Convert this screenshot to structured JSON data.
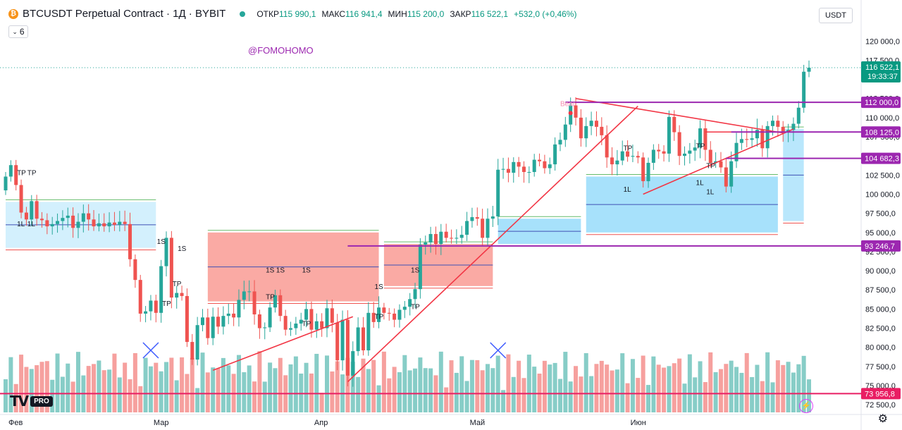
{
  "header": {
    "symbol": "BTCUSDT Perpetual Contract · 1Д · BYBIT",
    "coin_icon": "bitcoin-icon",
    "ohlc": [
      {
        "label": "ОТКР",
        "value": "115 990,1"
      },
      {
        "label": "МАКС",
        "value": "116 941,4"
      },
      {
        "label": "МИН",
        "value": "115 200,0"
      },
      {
        "label": "ЗАКР",
        "value": "116 522,1"
      }
    ],
    "change": "+532,0 (+0,46%)",
    "indicators_count": "6",
    "currency": "USDT",
    "watermark": "@FOMOHOMO"
  },
  "colors": {
    "up": "#26a69a",
    "down": "#ef5350",
    "purple": "#9c27b0",
    "trend": "#f23645",
    "band_blue": "#4fc3f7",
    "band_red": "#f44336"
  },
  "chart_data": {
    "type": "candlestick",
    "ylim": [
      71500,
      121500
    ],
    "y_ticks": [
      "120 000,0",
      "117 500,0",
      "112 500,0",
      "110 000,0",
      "107 500,0",
      "102 500,0",
      "100 000,0",
      "97 500,0",
      "95 000,0",
      "92 500,0",
      "90 000,0",
      "87 500,0",
      "85 000,0",
      "82 500,0",
      "80 000,0",
      "77 500,0",
      "75 000,0",
      "72 500,0"
    ],
    "x_ticks": [
      {
        "label": "Фев",
        "index": 0
      },
      {
        "label": "Мар",
        "index": 28
      },
      {
        "label": "Апр",
        "index": 59
      },
      {
        "label": "Май",
        "index": 89
      },
      {
        "label": "Июн",
        "index": 120
      }
    ],
    "closes": [
      102300,
      103800,
      101200,
      97600,
      96700,
      99100,
      96800,
      96600,
      95800,
      96100,
      96500,
      96900,
      97200,
      95600,
      96400,
      97500,
      96700,
      95800,
      96200,
      95800,
      96300,
      96000,
      96400,
      96100,
      91500,
      88800,
      84400,
      84700,
      86100,
      84500,
      90600,
      94300,
      86500,
      87100,
      86700,
      80700,
      78400,
      82900,
      83900,
      81200,
      84000,
      82700,
      84100,
      84400,
      83900,
      86200,
      87300,
      87300,
      84300,
      82500,
      82600,
      85200,
      86800,
      84100,
      82300,
      82500,
      83100,
      83600,
      85000,
      82300,
      83400,
      82500,
      85100,
      83200,
      78300,
      83600,
      76300,
      79500,
      82600,
      79600,
      84500,
      83300,
      85200,
      84500,
      84400,
      83600,
      84900,
      85300,
      86300,
      87600,
      93400,
      93700,
      94800,
      93500,
      95100,
      94300,
      94200,
      94300,
      94700,
      96500,
      97000,
      96800,
      94300,
      96800,
      97100,
      103200,
      103300,
      102800,
      104200,
      103600,
      102900,
      102900,
      104500,
      104300,
      103400,
      103900,
      106500,
      107100,
      109100,
      111600,
      110000,
      107300,
      108900,
      109600,
      108800,
      107700,
      104800,
      103900,
      104400,
      105600,
      104900,
      105000,
      104800,
      101700,
      104100,
      105800,
      105600,
      105300,
      110100,
      108100,
      105000,
      105300,
      105700,
      106100,
      108600,
      105800,
      104100,
      104300,
      103500,
      101000,
      104300,
      106700,
      107200,
      107100,
      107300,
      108400,
      106000,
      108900,
      109600,
      108800,
      108200,
      108400,
      109200,
      111300,
      116000,
      116522
    ],
    "hlines": [
      "112 000,0",
      "108 125,0",
      "104 682,3",
      "93 246,7",
      "73 956,8"
    ],
    "hline_values": [
      112000,
      108125,
      104682.3,
      93246.7,
      73956.8
    ],
    "last_price": "116 522,1",
    "countdown": "19:33:37",
    "annotation_bear": "Bear",
    "signal_labels": [
      "TP",
      "1L",
      "1S"
    ]
  }
}
